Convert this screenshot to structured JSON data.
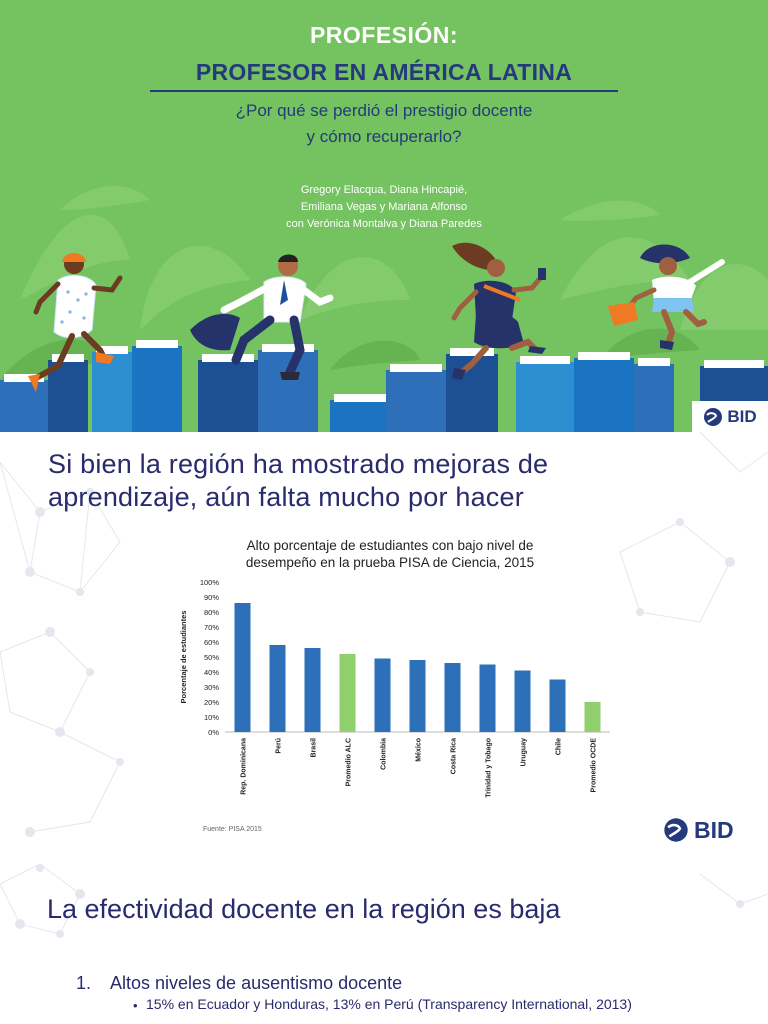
{
  "cover": {
    "title_line1": "PROFESIÓN:",
    "title_line2": "PROFESOR EN AMÉRICA LATINA",
    "subtitle_line1": "¿Por qué se perdió el prestigio docente",
    "subtitle_line2": "y cómo recuperarlo?",
    "authors_line1": "Gregory Elacqua, Diana Hincapié,",
    "authors_line2": "Emiliana Vegas y Mariana Alfonso",
    "authors_line3": "con Verónica Montalva y Diana Paredes",
    "logo": "BID"
  },
  "slide2": {
    "heading_line1": "Si bien la región ha mostrado mejoras de",
    "heading_line2": "aprendizaje, aún falta mucho por hacer",
    "logo": "BID"
  },
  "chart_data": {
    "type": "bar",
    "title_line1": "Alto porcentaje de estudiantes con bajo nivel de",
    "title_line2": "desempeño en la prueba PISA de Ciencia, 2015",
    "ylabel": "Porcentaje de estudiantes",
    "xlabel": "",
    "ylim": [
      0,
      100
    ],
    "yticks": [
      "0%",
      "10%",
      "20%",
      "30%",
      "40%",
      "50%",
      "60%",
      "70%",
      "80%",
      "90%",
      "100%"
    ],
    "grid": false,
    "categories": [
      "Rep. Dominicana",
      "Perú",
      "Brasil",
      "Promedio ALC",
      "Colombia",
      "México",
      "Costa Rica",
      "Trinidad y Tobago",
      "Uruguay",
      "Chile",
      "Promedio OCDE"
    ],
    "values": [
      86,
      58,
      56,
      52,
      49,
      48,
      46,
      45,
      41,
      35,
      20
    ],
    "colors": [
      "#2e6fba",
      "#2e6fba",
      "#2e6fba",
      "#8fcf6e",
      "#2e6fba",
      "#2e6fba",
      "#2e6fba",
      "#2e6fba",
      "#2e6fba",
      "#2e6fba",
      "#8fcf6e"
    ],
    "source": "Fuente: PISA 2015"
  },
  "slide3": {
    "heading": "La efectividad docente en la región es baja",
    "item_number": "1.",
    "item_label": "Altos niveles de ausentismo docente",
    "bullet": "15% en Ecuador y Honduras, 13% en Perú (Transparency International, 2013)"
  },
  "colors": {
    "cover_green": "#74c260",
    "navy": "#243a7c",
    "bar_blue": "#2e6fba",
    "bar_green": "#8fcf6e"
  }
}
